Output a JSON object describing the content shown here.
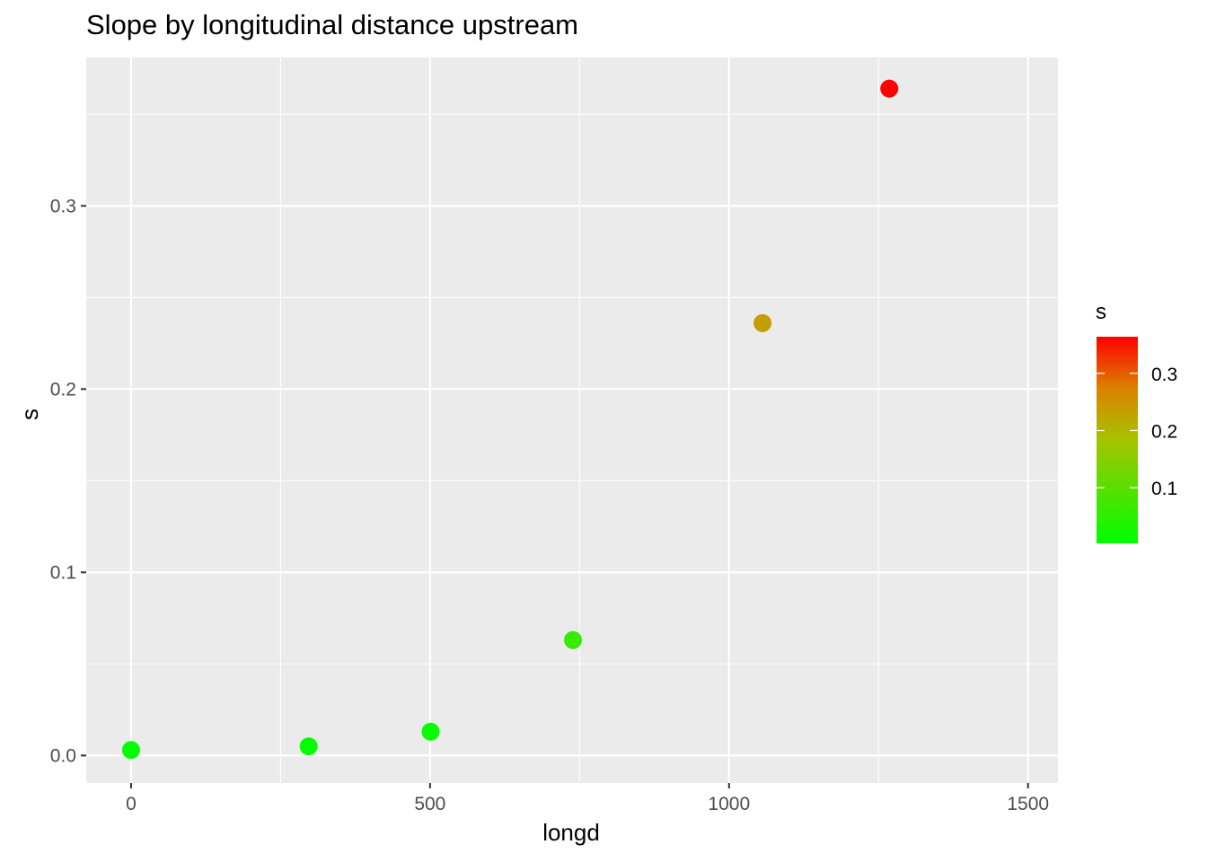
{
  "chart_data": {
    "type": "scatter",
    "title": "Slope by longitudinal distance upstream",
    "xlabel": "longd",
    "ylabel": "s",
    "xlim": [
      -75,
      1550
    ],
    "ylim": [
      -0.015,
      0.381
    ],
    "x_ticks": [
      0,
      500,
      1000,
      1500
    ],
    "x_tick_labels": [
      "0",
      "500",
      "1000",
      "1500"
    ],
    "y_ticks": [
      0.0,
      0.1,
      0.2,
      0.3
    ],
    "y_tick_labels": [
      "0.0",
      "0.1",
      "0.2",
      "0.3"
    ],
    "grid": true,
    "points": [
      {
        "x": 0,
        "y": 0.003
      },
      {
        "x": 297,
        "y": 0.005
      },
      {
        "x": 501,
        "y": 0.013
      },
      {
        "x": 739,
        "y": 0.063
      },
      {
        "x": 1056,
        "y": 0.236
      },
      {
        "x": 1268,
        "y": 0.364
      }
    ],
    "legend": {
      "title": "s",
      "position": "right",
      "type": "colorbar",
      "range": [
        0.003,
        0.364
      ],
      "low_color": "#00FF00",
      "high_color": "#FF0000",
      "ticks": [
        0.1,
        0.2,
        0.3
      ],
      "tick_labels": [
        "0.1",
        "0.2",
        "0.3"
      ]
    }
  }
}
